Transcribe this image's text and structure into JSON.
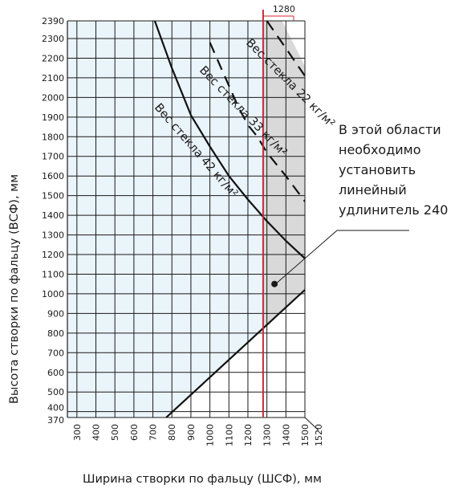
{
  "chart_data": {
    "type": "line",
    "xlabel": "Ширина створки по фальцу (ШСФ), мм",
    "ylabel": "Высота створки по фальцу (ВСФ), мм",
    "xlim": [
      250,
      1500
    ],
    "ylim": [
      370,
      2390
    ],
    "x_ticks": [
      300,
      400,
      500,
      600,
      700,
      800,
      900,
      1000,
      1100,
      1200,
      1300,
      1400,
      1500
    ],
    "x_ticks_extra": [
      1520
    ],
    "y_ticks": [
      370,
      400,
      500,
      600,
      700,
      800,
      900,
      1000,
      1100,
      1200,
      1300,
      1400,
      1500,
      1600,
      1700,
      1800,
      1900,
      2000,
      2100,
      2200,
      2300,
      2390
    ],
    "grid": true,
    "threshold_line": {
      "x": 1280,
      "label": "1280",
      "color": "#d8242b"
    },
    "series": [
      {
        "name": "Вес стекла 42 кг/м²",
        "style": "solid",
        "points": [
          [
            710,
            2390
          ],
          [
            800,
            2150
          ],
          [
            900,
            1910
          ],
          [
            1000,
            1750
          ],
          [
            1100,
            1600
          ],
          [
            1200,
            1480
          ],
          [
            1300,
            1370
          ],
          [
            1400,
            1270
          ],
          [
            1500,
            1180
          ]
        ]
      },
      {
        "name": "Вес стекла 33 кг/м²",
        "style": "dashed",
        "points": [
          [
            1000,
            2280
          ],
          [
            1050,
            2170
          ],
          [
            1100,
            2060
          ],
          [
            1150,
            1950
          ],
          [
            1200,
            1860
          ],
          [
            1250,
            1800
          ],
          [
            1300,
            1720
          ],
          [
            1400,
            1600
          ],
          [
            1500,
            1470
          ]
        ]
      },
      {
        "name": "Вес стекла 22 кг/м²",
        "style": "dashed",
        "points": [
          [
            1300,
            2390
          ],
          [
            1350,
            2320
          ],
          [
            1400,
            2250
          ],
          [
            1450,
            2180
          ],
          [
            1500,
            2110
          ]
        ]
      },
      {
        "name": "",
        "style": "solid",
        "points": [
          [
            770,
            370
          ],
          [
            1500,
            1020
          ]
        ]
      }
    ],
    "regions": [
      {
        "fill": "#eaf4fb",
        "description_points": [
          [
            250,
            370
          ],
          [
            770,
            370
          ],
          [
            1280,
            825
          ],
          [
            1280,
            2390
          ],
          [
            250,
            2390
          ]
        ]
      },
      {
        "fill": "#d9d9d9",
        "description_points": [
          [
            1280,
            825
          ],
          [
            1500,
            1020
          ],
          [
            1500,
            2160
          ],
          [
            1380,
            2390
          ],
          [
            1280,
            2390
          ]
        ]
      }
    ],
    "annotation": {
      "lines": [
        "В этой области",
        "необходимо",
        "установить",
        "линейный",
        "удлинитель 240"
      ],
      "pointer_target": [
        1340,
        1050
      ]
    }
  }
}
